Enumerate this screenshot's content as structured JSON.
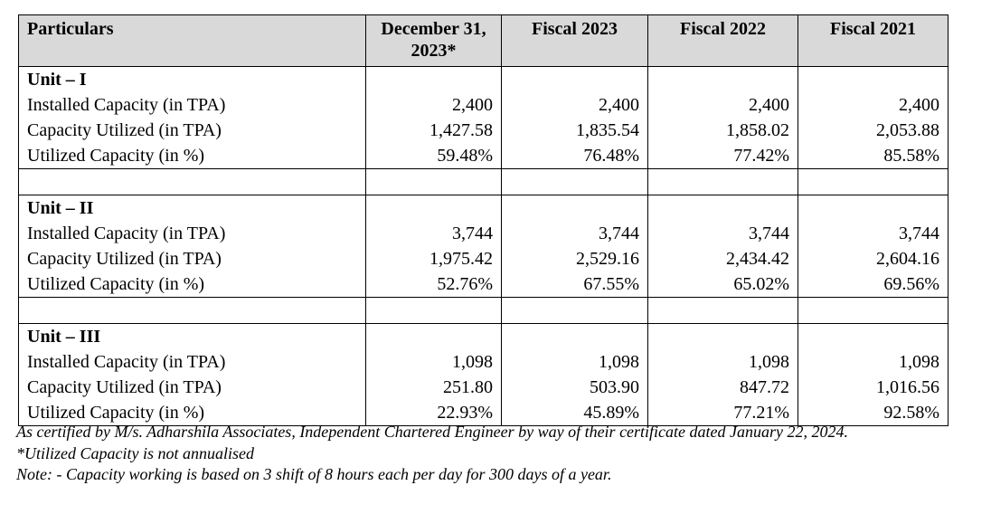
{
  "table": {
    "headers": [
      "Particulars",
      "December 31, 2023*",
      "Fiscal 2023",
      "Fiscal 2022",
      "Fiscal 2021"
    ],
    "units": [
      {
        "title": "Unit – I",
        "rows": [
          {
            "label": "Installed Capacity (in TPA)",
            "values": [
              "2,400",
              "2,400",
              "2,400",
              "2,400"
            ]
          },
          {
            "label": "Capacity Utilized (in TPA)",
            "values": [
              "1,427.58",
              "1,835.54",
              "1,858.02",
              "2,053.88"
            ]
          },
          {
            "label": "Utilized Capacity (in %)",
            "values": [
              "59.48%",
              "76.48%",
              "77.42%",
              "85.58%"
            ]
          }
        ]
      },
      {
        "title": "Unit – II",
        "rows": [
          {
            "label": "Installed Capacity (in TPA)",
            "values": [
              "3,744",
              "3,744",
              "3,744",
              "3,744"
            ]
          },
          {
            "label": "Capacity Utilized (in TPA)",
            "values": [
              "1,975.42",
              "2,529.16",
              "2,434.42",
              "2,604.16"
            ]
          },
          {
            "label": "Utilized Capacity (in %)",
            "values": [
              "52.76%",
              "67.55%",
              "65.02%",
              "69.56%"
            ]
          }
        ]
      },
      {
        "title": "Unit – III",
        "rows": [
          {
            "label": "Installed Capacity (in TPA)",
            "values": [
              "1,098",
              "1,098",
              "1,098",
              "1,098"
            ]
          },
          {
            "label": "Capacity Utilized (in TPA)",
            "values": [
              "251.80",
              "503.90",
              "847.72",
              "1,016.56"
            ]
          },
          {
            "label": "Utilized Capacity (in %)",
            "values": [
              "22.93%",
              "45.89%",
              "77.21%",
              "92.58%"
            ]
          }
        ]
      }
    ]
  },
  "notes": {
    "certification": "As certified by M/s. Adharshila Associates, Independent Chartered Engineer by way of their certificate dated January 22, 2024.",
    "annualised": "*Utilized Capacity is not annualised",
    "working": "Note: - Capacity working is based on 3 shift of 8 hours each per day for 300 days of a year."
  }
}
